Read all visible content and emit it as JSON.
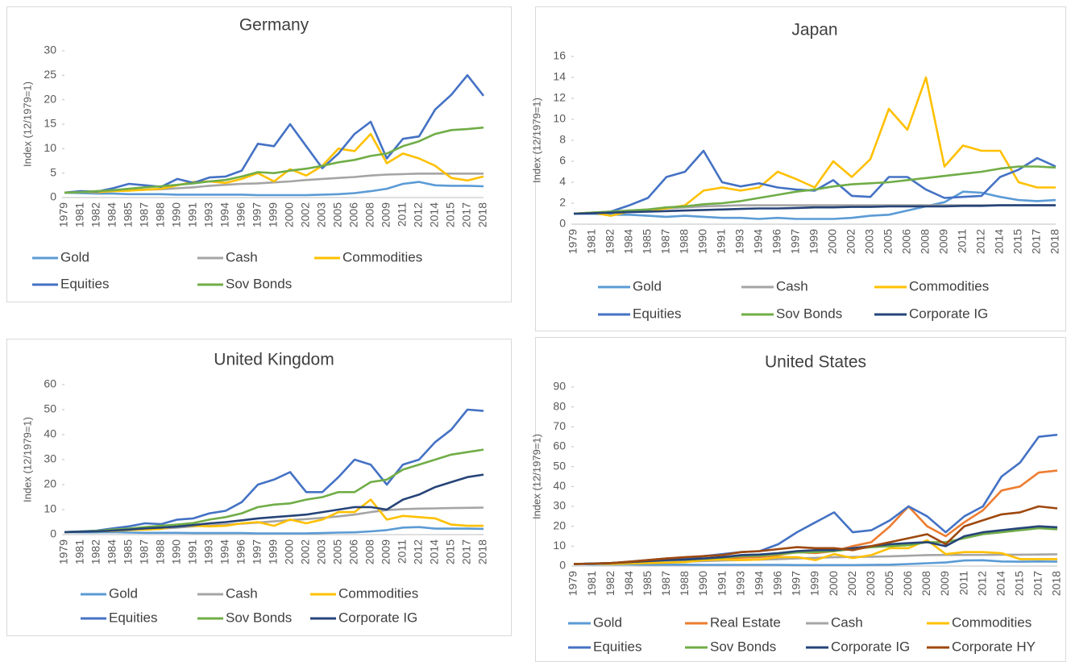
{
  "chart_data": [
    {
      "type": "line",
      "title": "Germany",
      "y_label": "Index (12/1979=1)",
      "categories": [
        "1979",
        "1981",
        "1982",
        "1984",
        "1985",
        "1987",
        "1988",
        "1990",
        "1991",
        "1993",
        "1994",
        "1996",
        "1997",
        "1999",
        "2000",
        "2002",
        "2003",
        "2005",
        "2006",
        "2008",
        "2009",
        "2011",
        "2012",
        "2014",
        "2015",
        "2017",
        "2018"
      ],
      "ylim": [
        0,
        30
      ],
      "yticks": [
        0,
        5,
        10,
        15,
        20,
        25,
        30
      ],
      "series": [
        {
          "name": "Gold",
          "color": "#5b9bd5",
          "values": [
            1,
            0.9,
            0.8,
            0.8,
            0.7,
            0.7,
            0.7,
            0.6,
            0.6,
            0.6,
            0.6,
            0.6,
            0.5,
            0.5,
            0.5,
            0.5,
            0.6,
            0.7,
            0.9,
            1.3,
            1.8,
            2.8,
            3.2,
            2.5,
            2.4,
            2.4,
            2.3
          ]
        },
        {
          "name": "Cash",
          "color": "#a5a5a5",
          "values": [
            1,
            1.1,
            1.3,
            1.4,
            1.5,
            1.6,
            1.7,
            1.9,
            2.1,
            2.4,
            2.6,
            2.8,
            2.9,
            3.1,
            3.3,
            3.6,
            3.8,
            4.0,
            4.2,
            4.5,
            4.7,
            4.8,
            4.9,
            4.9,
            4.9,
            4.9,
            4.9
          ]
        },
        {
          "name": "Commodities",
          "color": "#ffc000",
          "values": [
            1,
            1.2,
            1.1,
            1.3,
            1.4,
            1.6,
            1.8,
            2.5,
            3.2,
            3.3,
            3.0,
            3.8,
            5.0,
            3.3,
            5.8,
            4.5,
            6.5,
            10,
            9.5,
            13,
            7,
            9,
            8,
            6.5,
            4,
            3.5,
            4.3
          ]
        },
        {
          "name": "Equities",
          "color": "#4472c4",
          "values": [
            1,
            1.3,
            1.2,
            1.9,
            2.8,
            2.5,
            2.2,
            3.8,
            3.0,
            4.1,
            4.3,
            5.5,
            11,
            10.5,
            15,
            10.5,
            6,
            9,
            13,
            15.5,
            8,
            12,
            12.5,
            18,
            21,
            25,
            20.8
          ]
        },
        {
          "name": "Sov Bonds",
          "color": "#70ad47",
          "values": [
            1,
            1.1,
            1.3,
            1.5,
            1.8,
            2.1,
            2.3,
            2.6,
            2.9,
            3.3,
            3.6,
            4.3,
            5.2,
            5.0,
            5.5,
            5.9,
            6.5,
            7.2,
            7.7,
            8.5,
            9.0,
            10.5,
            11.5,
            13,
            13.8,
            14,
            14.3
          ]
        }
      ]
    },
    {
      "type": "line",
      "title": "Japan",
      "y_label": "Index (12/1979=1)",
      "categories": [
        "1979",
        "1981",
        "1982",
        "1984",
        "1985",
        "1987",
        "1988",
        "1990",
        "1991",
        "1993",
        "1994",
        "1996",
        "1997",
        "1999",
        "2000",
        "2002",
        "2003",
        "2005",
        "2006",
        "2008",
        "2009",
        "2011",
        "2012",
        "2014",
        "2015",
        "2017",
        "2018"
      ],
      "ylim": [
        0,
        16
      ],
      "yticks": [
        0,
        2,
        4,
        6,
        8,
        10,
        12,
        14,
        16
      ],
      "series": [
        {
          "name": "Gold",
          "color": "#5b9bd5",
          "values": [
            1,
            1.0,
            0.9,
            0.9,
            0.8,
            0.7,
            0.8,
            0.7,
            0.6,
            0.6,
            0.5,
            0.6,
            0.5,
            0.5,
            0.5,
            0.6,
            0.8,
            0.9,
            1.3,
            1.7,
            2.1,
            3.1,
            3.0,
            2.6,
            2.3,
            2.2,
            2.3
          ]
        },
        {
          "name": "Cash",
          "color": "#a5a5a5",
          "values": [
            1,
            1.1,
            1.2,
            1.3,
            1.4,
            1.5,
            1.6,
            1.7,
            1.75,
            1.8,
            1.8,
            1.8,
            1.8,
            1.8,
            1.8,
            1.8,
            1.8,
            1.8,
            1.8,
            1.8,
            1.8,
            1.8,
            1.8,
            1.8,
            1.8,
            1.8,
            1.8
          ]
        },
        {
          "name": "Commodities",
          "color": "#ffc000",
          "values": [
            1,
            1.1,
            0.8,
            1.2,
            1.3,
            1.5,
            1.8,
            3.2,
            3.5,
            3.2,
            3.5,
            5,
            4.3,
            3.5,
            6,
            4.5,
            6.2,
            11,
            9,
            14,
            5.5,
            7.5,
            7,
            7,
            4,
            3.5,
            3.5
          ]
        },
        {
          "name": "Equities",
          "color": "#4472c4",
          "values": [
            1,
            1.0,
            1.2,
            1.8,
            2.5,
            4.5,
            5,
            7,
            4,
            3.6,
            3.9,
            3.5,
            3.3,
            3.2,
            4.2,
            2.7,
            2.6,
            4.5,
            4.5,
            3.3,
            2.5,
            2.6,
            2.7,
            4.5,
            5.2,
            6.3,
            5.5
          ]
        },
        {
          "name": "Sov Bonds",
          "color": "#70ad47",
          "values": [
            1,
            1.1,
            1.2,
            1.3,
            1.4,
            1.6,
            1.7,
            1.9,
            2.0,
            2.2,
            2.5,
            2.8,
            3.1,
            3.3,
            3.6,
            3.8,
            3.9,
            4.0,
            4.2,
            4.4,
            4.6,
            4.8,
            5.0,
            5.3,
            5.5,
            5.5,
            5.4
          ]
        },
        {
          "name": "Corporate IG",
          "color": "#264478",
          "values": [
            1,
            1.05,
            1.1,
            1.15,
            1.2,
            1.25,
            1.3,
            1.35,
            1.4,
            1.45,
            1.5,
            1.5,
            1.55,
            1.6,
            1.6,
            1.65,
            1.65,
            1.7,
            1.7,
            1.7,
            1.7,
            1.75,
            1.75,
            1.8,
            1.8,
            1.8,
            1.8
          ]
        }
      ]
    },
    {
      "type": "line",
      "title": "United Kingdom",
      "y_label": "Index (12/1979=1)",
      "categories": [
        "1979",
        "1981",
        "1982",
        "1984",
        "1985",
        "1987",
        "1988",
        "1990",
        "1991",
        "1993",
        "1994",
        "1996",
        "1997",
        "1999",
        "2000",
        "2002",
        "2003",
        "2005",
        "2006",
        "2008",
        "2009",
        "2011",
        "2012",
        "2014",
        "2015",
        "2017",
        "2018"
      ],
      "ylim": [
        0,
        60
      ],
      "yticks": [
        0,
        10,
        20,
        30,
        40,
        50,
        60
      ],
      "series": [
        {
          "name": "Gold",
          "color": "#5b9bd5",
          "values": [
            1,
            0.9,
            0.9,
            1.0,
            0.8,
            0.7,
            0.7,
            0.7,
            0.6,
            0.6,
            0.6,
            0.6,
            0.5,
            0.5,
            0.5,
            0.5,
            0.6,
            0.8,
            0.9,
            1.3,
            1.8,
            2.8,
            3.0,
            2.4,
            2.4,
            2.4,
            2.3
          ]
        },
        {
          "name": "Cash",
          "color": "#a5a5a5",
          "values": [
            1,
            1.2,
            1.4,
            1.6,
            1.8,
            2.1,
            2.4,
            2.8,
            3.3,
            3.7,
            4.0,
            4.4,
            4.8,
            5.3,
            5.8,
            6.2,
            6.7,
            7.3,
            8.0,
            9.0,
            9.8,
            10.2,
            10.4,
            10.5,
            10.6,
            10.7,
            10.8
          ]
        },
        {
          "name": "Commodities",
          "color": "#ffc000",
          "values": [
            1,
            1.2,
            1.3,
            1.5,
            1.8,
            2,
            2.3,
            3.5,
            3.5,
            3.3,
            3.5,
            4.5,
            5,
            3.5,
            6,
            4.5,
            6,
            9,
            9,
            14,
            6,
            7.5,
            7,
            6.5,
            4,
            3.5,
            3.5
          ]
        },
        {
          "name": "Equities",
          "color": "#4472c4",
          "values": [
            1,
            1.3,
            1.6,
            2.5,
            3.3,
            4.5,
            4.2,
            6,
            6.5,
            8.5,
            9.5,
            13,
            20,
            22,
            25,
            17,
            17,
            23,
            30,
            28,
            20,
            28,
            30,
            37,
            42,
            50,
            49.5
          ]
        },
        {
          "name": "Sov Bonds",
          "color": "#70ad47",
          "values": [
            1,
            1.2,
            1.5,
            2,
            2.4,
            3,
            3.5,
            4,
            4.6,
            6,
            7,
            8.5,
            11,
            12,
            12.5,
            14,
            15,
            17,
            17,
            21,
            22,
            26,
            28,
            30,
            32,
            33,
            34
          ]
        },
        {
          "name": "Corporate IG",
          "color": "#264478",
          "values": [
            1,
            1.15,
            1.3,
            1.6,
            2,
            2.5,
            2.8,
            3.2,
            3.8,
            4.5,
            5,
            5.7,
            6.5,
            7,
            7.5,
            8,
            9,
            10,
            11,
            11,
            10,
            14,
            16,
            19,
            21,
            23,
            24
          ]
        }
      ]
    },
    {
      "type": "line",
      "title": "United States",
      "y_label": "Index (12/1979=1)",
      "categories": [
        "1979",
        "1981",
        "1982",
        "1984",
        "1985",
        "1987",
        "1988",
        "1990",
        "1991",
        "1993",
        "1994",
        "1996",
        "1997",
        "1999",
        "2000",
        "2002",
        "2003",
        "2005",
        "2006",
        "2008",
        "2009",
        "2011",
        "2012",
        "2014",
        "2015",
        "2017",
        "2018"
      ],
      "ylim": [
        0,
        90
      ],
      "yticks": [
        0,
        10,
        20,
        30,
        40,
        50,
        60,
        70,
        80,
        90
      ],
      "series": [
        {
          "name": "Gold",
          "color": "#5b9bd5",
          "values": [
            1,
            0.9,
            0.8,
            0.8,
            0.7,
            0.7,
            0.7,
            0.6,
            0.6,
            0.6,
            0.6,
            0.6,
            0.5,
            0.5,
            0.5,
            0.5,
            0.6,
            0.7,
            1.0,
            1.4,
            1.8,
            2.8,
            2.9,
            2.3,
            2.2,
            2.3,
            2.2
          ]
        },
        {
          "name": "Real Estate",
          "color": "#ed7d31",
          "values": [
            1,
            1.2,
            1.5,
            2,
            2.5,
            3,
            3.3,
            3.3,
            3.7,
            4.2,
            4.5,
            5.5,
            7,
            6.5,
            7.5,
            10,
            12,
            20,
            30,
            20,
            15,
            22,
            28,
            38,
            40,
            47,
            48
          ]
        },
        {
          "name": "Cash",
          "color": "#a5a5a5",
          "values": [
            1,
            1.2,
            1.4,
            1.6,
            1.8,
            2,
            2.2,
            2.5,
            2.8,
            3,
            3.2,
            3.5,
            3.8,
            4.1,
            4.4,
            4.6,
            4.7,
            4.9,
            5.2,
            5.5,
            5.6,
            5.6,
            5.6,
            5.7,
            5.7,
            5.8,
            5.9
          ]
        },
        {
          "name": "Commodities",
          "color": "#ffc000",
          "values": [
            1,
            1.2,
            1.0,
            1.3,
            1.5,
            1.7,
            2,
            3,
            3.3,
            3,
            3.3,
            4.5,
            4.5,
            3,
            6,
            4,
            5.5,
            9,
            9,
            13,
            6,
            7,
            7,
            6.5,
            3.5,
            3.5,
            3.5
          ]
        },
        {
          "name": "Equities",
          "color": "#4472c4",
          "values": [
            1,
            1.3,
            1.5,
            2.2,
            3,
            3.8,
            3.5,
            5,
            6,
            7,
            7.5,
            11,
            17,
            22,
            27,
            17,
            18,
            23,
            30,
            25,
            17,
            25,
            30,
            45,
            52,
            65,
            66
          ]
        },
        {
          "name": "Sov Bonds",
          "color": "#70ad47",
          "values": [
            1,
            1.2,
            1.5,
            2,
            2.5,
            3,
            3.2,
            3.7,
            4.3,
            5,
            5.2,
            6,
            6.8,
            7,
            7.5,
            8.5,
            9.5,
            10,
            10.5,
            12,
            12,
            14,
            16,
            17,
            18,
            19,
            18.5
          ]
        },
        {
          "name": "Corporate IG",
          "color": "#264478",
          "values": [
            1,
            1.2,
            1.5,
            2,
            2.5,
            3,
            3.3,
            3.8,
            4.5,
            5.5,
            5.8,
            6.5,
            7.5,
            8,
            8,
            9,
            10,
            11,
            11.5,
            12,
            10,
            15,
            17,
            18,
            19,
            20,
            19.5
          ]
        },
        {
          "name": "Corporate HY",
          "color": "#9e480e",
          "values": [
            1,
            1.2,
            1.5,
            2.2,
            3,
            3.8,
            4.5,
            5,
            5.5,
            7,
            7.5,
            8.5,
            9.5,
            9,
            9,
            8,
            10,
            12,
            14,
            16,
            11,
            20,
            23,
            26,
            27,
            30,
            29
          ]
        }
      ]
    }
  ]
}
